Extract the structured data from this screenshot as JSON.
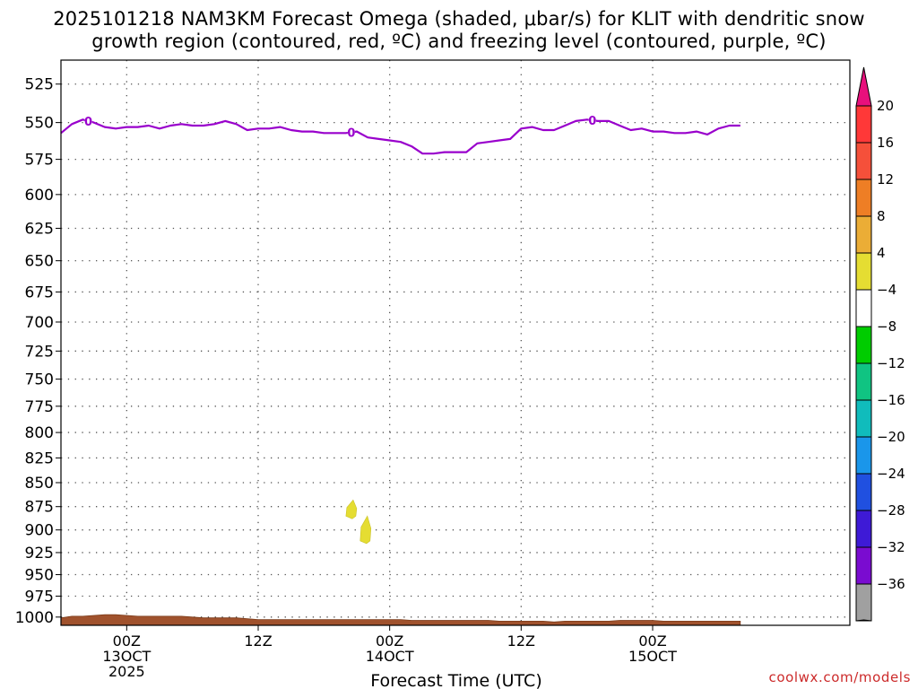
{
  "title": {
    "line1": "2025101218 NAM3KM Forecast Omega (shaded, μbar/s) for KLIT with dendritic snow",
    "line2": "growth region (contoured, red, ºC) and freezing level (contoured, purple, ºC)"
  },
  "credit": "coolwx.com/models",
  "chart_data": {
    "type": "time-height",
    "title": "2025101218 NAM3KM Forecast Omega (shaded, μbar/s) for KLIT with dendritic snow growth region (contoured, red, ºC) and freezing level (contoured, purple, ºC)",
    "xlabel": "Forecast Time (UTC)",
    "ylabel": "",
    "x_range_hours": [
      18,
      90
    ],
    "y_range_hPa": [
      510,
      1010
    ],
    "y_scale": "log-pressure",
    "grid": true,
    "y_ticks": [
      525,
      550,
      575,
      600,
      625,
      650,
      675,
      700,
      725,
      750,
      775,
      800,
      825,
      850,
      875,
      900,
      925,
      950,
      975,
      1000
    ],
    "x_ticks": [
      {
        "hour": 24,
        "label1": "00Z",
        "label2": "13OCT",
        "label3": "2025"
      },
      {
        "hour": 36,
        "label1": "12Z",
        "label2": "",
        "label3": ""
      },
      {
        "hour": 48,
        "label1": "00Z",
        "label2": "14OCT",
        "label3": ""
      },
      {
        "hour": 60,
        "label1": "12Z",
        "label2": "",
        "label3": ""
      },
      {
        "hour": 72,
        "label1": "00Z",
        "label2": "15OCT",
        "label3": ""
      }
    ],
    "freezing_level": {
      "color": "#9900cc",
      "contour_label": "0",
      "label_hours": [
        20.5,
        44.5,
        66.5
      ],
      "points": [
        [
          18,
          557
        ],
        [
          19,
          551
        ],
        [
          20,
          548
        ],
        [
          21,
          550
        ],
        [
          22,
          553
        ],
        [
          23,
          554
        ],
        [
          24,
          553
        ],
        [
          25,
          553
        ],
        [
          26,
          552
        ],
        [
          27,
          554
        ],
        [
          28,
          552
        ],
        [
          29,
          551
        ],
        [
          30,
          552
        ],
        [
          31,
          552
        ],
        [
          32,
          551
        ],
        [
          33,
          549
        ],
        [
          34,
          551
        ],
        [
          35,
          555
        ],
        [
          36,
          554
        ],
        [
          37,
          554
        ],
        [
          38,
          553
        ],
        [
          39,
          555
        ],
        [
          40,
          556
        ],
        [
          41,
          556
        ],
        [
          42,
          557
        ],
        [
          43,
          557
        ],
        [
          44,
          557
        ],
        [
          45,
          556
        ],
        [
          46,
          560
        ],
        [
          47,
          561
        ],
        [
          48,
          562
        ],
        [
          49,
          563
        ],
        [
          50,
          566
        ],
        [
          51,
          571
        ],
        [
          52,
          571
        ],
        [
          53,
          570
        ],
        [
          54,
          570
        ],
        [
          55,
          570
        ],
        [
          56,
          564
        ],
        [
          57,
          563
        ],
        [
          58,
          562
        ],
        [
          59,
          561
        ],
        [
          60,
          554
        ],
        [
          61,
          553
        ],
        [
          62,
          555
        ],
        [
          63,
          555
        ],
        [
          64,
          552
        ],
        [
          65,
          549
        ],
        [
          66,
          548
        ],
        [
          67,
          549
        ],
        [
          68,
          549
        ],
        [
          69,
          552
        ],
        [
          70,
          555
        ],
        [
          71,
          554
        ],
        [
          72,
          556
        ],
        [
          73,
          556
        ],
        [
          74,
          557
        ],
        [
          75,
          557
        ],
        [
          76,
          556
        ],
        [
          77,
          558
        ],
        [
          78,
          554
        ],
        [
          79,
          552
        ],
        [
          80,
          552
        ]
      ]
    },
    "omega_features": [
      {
        "value_range": [
          4,
          8
        ],
        "color": "#e5dd32",
        "center_hour": 44.5,
        "p_range": [
          868,
          888
        ]
      },
      {
        "value_range": [
          4,
          8
        ],
        "color": "#e5dd32",
        "center_hour": 45.8,
        "p_range": [
          885,
          915
        ]
      }
    ],
    "terrain": {
      "color": "#a0522d",
      "points": [
        [
          18,
          1001
        ],
        [
          19,
          999
        ],
        [
          20,
          999
        ],
        [
          21,
          998
        ],
        [
          22,
          997
        ],
        [
          23,
          997
        ],
        [
          24,
          998
        ],
        [
          25,
          999
        ],
        [
          26,
          999
        ],
        [
          27,
          999
        ],
        [
          28,
          999
        ],
        [
          29,
          999
        ],
        [
          30,
          1000
        ],
        [
          31,
          1001
        ],
        [
          32,
          1001
        ],
        [
          33,
          1001
        ],
        [
          34,
          1001
        ],
        [
          35,
          1002
        ],
        [
          36,
          1003
        ],
        [
          37,
          1003
        ],
        [
          38,
          1003
        ],
        [
          39,
          1003
        ],
        [
          40,
          1003
        ],
        [
          41,
          1003
        ],
        [
          42,
          1003
        ],
        [
          43,
          1003
        ],
        [
          44,
          1003
        ],
        [
          45,
          1003
        ],
        [
          46,
          1003
        ],
        [
          47,
          1003
        ],
        [
          48,
          1003
        ],
        [
          49,
          1003
        ],
        [
          50,
          1004
        ],
        [
          51,
          1004
        ],
        [
          52,
          1004
        ],
        [
          53,
          1004
        ],
        [
          54,
          1004
        ],
        [
          55,
          1004
        ],
        [
          56,
          1004
        ],
        [
          57,
          1004
        ],
        [
          58,
          1005
        ],
        [
          59,
          1005
        ],
        [
          60,
          1005
        ],
        [
          61,
          1005
        ],
        [
          62,
          1005
        ],
        [
          63,
          1006
        ],
        [
          64,
          1005
        ],
        [
          65,
          1005
        ],
        [
          66,
          1005
        ],
        [
          67,
          1005
        ],
        [
          68,
          1005
        ],
        [
          69,
          1004
        ],
        [
          70,
          1004
        ],
        [
          71,
          1004
        ],
        [
          72,
          1004
        ],
        [
          73,
          1005
        ],
        [
          74,
          1005
        ],
        [
          75,
          1005
        ],
        [
          76,
          1005
        ],
        [
          77,
          1005
        ],
        [
          78,
          1005
        ],
        [
          79,
          1005
        ],
        [
          80,
          1005
        ]
      ]
    },
    "colorbar": {
      "labels": [
        20,
        16,
        12,
        8,
        4,
        -4,
        -8,
        -12,
        -16,
        -20,
        -24,
        -28,
        -32,
        -36
      ],
      "colors": [
        "#ff3838",
        "#f5503a",
        "#ee7e25",
        "#ebad36",
        "#e5dd32",
        "#ffffff",
        "#00cc00",
        "#10c482",
        "#10bcbc",
        "#1a96ea",
        "#2050e0",
        "#3e1ad6",
        "#7a0cd0",
        "#a0a0a0"
      ],
      "top_arrow_color": "#e8107c",
      "bottom_arrow_color": "#000000"
    }
  }
}
